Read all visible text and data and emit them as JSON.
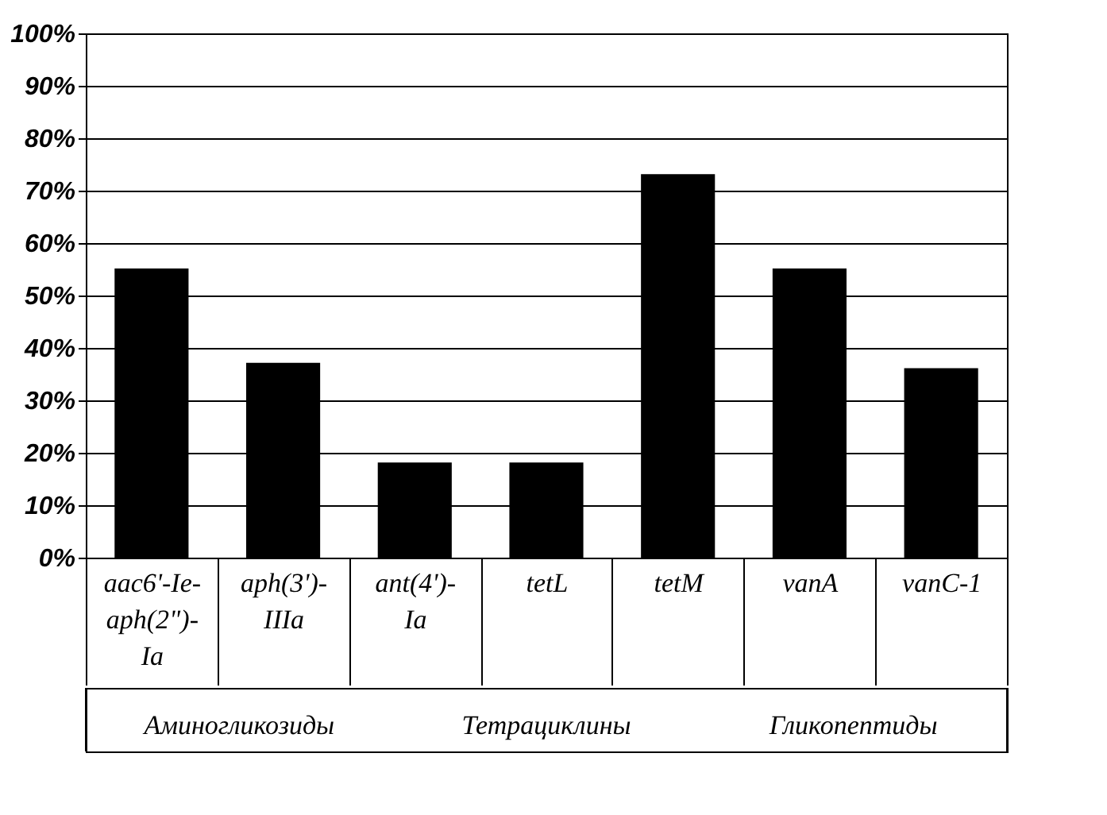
{
  "chart_data": {
    "type": "bar",
    "categories": [
      "aac6'-Ie-aph(2\")-Ia",
      "aph(3')-IIIa",
      "ant(4')-Ia",
      "tetL",
      "tetM",
      "vanA",
      "vanC-1"
    ],
    "values": [
      55,
      37,
      18,
      18,
      73,
      55,
      36
    ],
    "color": "#000000",
    "ylim": [
      0,
      100
    ],
    "yticks": [
      {
        "value": 0,
        "label": "0%"
      },
      {
        "value": 10,
        "label": "10%"
      },
      {
        "value": 20,
        "label": "20%"
      },
      {
        "value": 30,
        "label": "30%"
      },
      {
        "value": 40,
        "label": "40%"
      },
      {
        "value": 50,
        "label": "50%"
      },
      {
        "value": 60,
        "label": "60%"
      },
      {
        "value": 70,
        "label": "70%"
      },
      {
        "value": 80,
        "label": "80%"
      },
      {
        "value": 90,
        "label": "90%"
      },
      {
        "value": 100,
        "label": "100%"
      }
    ],
    "grid": "y",
    "annotations": [
      "Аминогликозиды",
      "Тетрациклины",
      "Гликопептиды"
    ]
  }
}
